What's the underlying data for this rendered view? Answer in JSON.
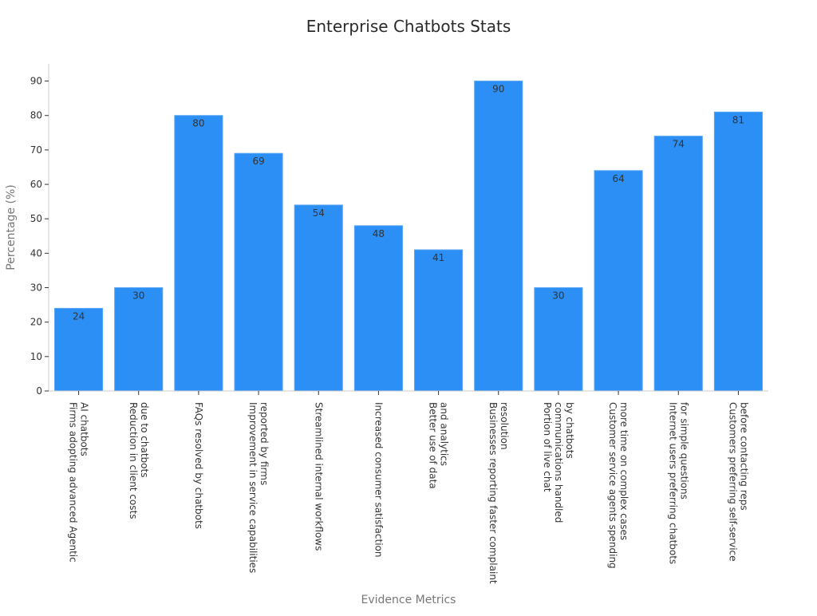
{
  "chart_data": {
    "type": "bar",
    "title": "Enterprise Chatbots Stats",
    "xlabel": "Evidence Metrics",
    "ylabel": "Percentage (%)",
    "ylim": [
      0,
      95
    ],
    "yticks": [
      0,
      10,
      20,
      30,
      40,
      50,
      60,
      70,
      80,
      90
    ],
    "grid": false,
    "bar_color": "#2b8ff5",
    "categories": [
      [
        "Firms adopting advanced Agentic",
        "AI chatbots"
      ],
      [
        "Reduction in client costs",
        "due to chatbots"
      ],
      [
        "FAQs resolved by chatbots"
      ],
      [
        "Improvement in service capabilities",
        "reported by firms"
      ],
      [
        "Streamlined internal workflows"
      ],
      [
        "Increased consumer satisfaction"
      ],
      [
        "Better use of data",
        "and analytics"
      ],
      [
        "Businesses reporting faster complaint",
        "resolution"
      ],
      [
        "Portion of live chat",
        "communications handled",
        "by chatbots"
      ],
      [
        "Customer service agents spending",
        "more time on complex cases"
      ],
      [
        "Internet users preferring chatbots",
        "for simple questions"
      ],
      [
        "Customers preferring self-service",
        "before contacting reps"
      ]
    ],
    "values": [
      24,
      30,
      80,
      69,
      54,
      48,
      41,
      90,
      30,
      64,
      74,
      81
    ]
  }
}
